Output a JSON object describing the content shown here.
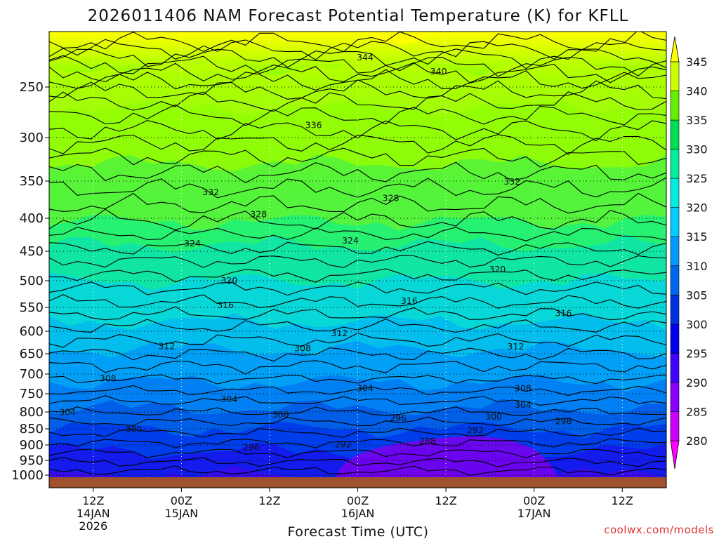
{
  "chart_data": {
    "type": "heatmap",
    "title": "2026011406 NAM Forecast Potential Temperature (K) for KFLL",
    "xlabel": "Forecast Time (UTC)",
    "ylabel": "",
    "credit": "coolwx.com/models",
    "y_ticks": [
      "250",
      "300",
      "350",
      "400",
      "450",
      "500",
      "550",
      "600",
      "650",
      "700",
      "750",
      "800",
      "850",
      "900",
      "950",
      "1000"
    ],
    "y_values": [
      250,
      300,
      350,
      400,
      450,
      500,
      550,
      600,
      650,
      700,
      750,
      800,
      850,
      900,
      950,
      1000
    ],
    "x_ticks": [
      {
        "time": "12Z",
        "date": "14JAN",
        "year": "2026",
        "hour": 6
      },
      {
        "time": "00Z",
        "date": "15JAN",
        "year": "",
        "hour": 18
      },
      {
        "time": "12Z",
        "date": "",
        "year": "",
        "hour": 30
      },
      {
        "time": "00Z",
        "date": "16JAN",
        "year": "",
        "hour": 42
      },
      {
        "time": "12Z",
        "date": "",
        "year": "",
        "hour": 54
      },
      {
        "time": "00Z",
        "date": "17JAN",
        "year": "",
        "hour": 66
      },
      {
        "time": "12Z",
        "date": "",
        "year": "",
        "hour": 78
      }
    ],
    "x_range_hours": [
      0,
      84
    ],
    "y_range_hPa": [
      200,
      1000
    ],
    "colorbar": {
      "levels": [
        280,
        285,
        290,
        295,
        300,
        305,
        310,
        315,
        320,
        325,
        330,
        335,
        340,
        345
      ],
      "labels": [
        "280",
        "285",
        "290",
        "295",
        "300",
        "305",
        "310",
        "315",
        "320",
        "325",
        "330",
        "335",
        "340",
        "345"
      ],
      "colors": [
        "#ff00ff",
        "#cc00ff",
        "#8800ff",
        "#4400ff",
        "#0000ee",
        "#0033dd",
        "#0066ee",
        "#0099ff",
        "#00ccff",
        "#00eedd",
        "#00ee99",
        "#00dd55",
        "#66ee00",
        "#ccff00",
        "#ffff00"
      ]
    },
    "contour_interval": 4,
    "contour_labels": [
      {
        "text": "344",
        "h": 43.0,
        "p": 220
      },
      {
        "text": "340",
        "h": 53.0,
        "p": 234
      },
      {
        "text": "336",
        "h": 36.0,
        "p": 287
      },
      {
        "text": "332",
        "h": 22.0,
        "p": 364
      },
      {
        "text": "332",
        "h": 63.0,
        "p": 350
      },
      {
        "text": "328",
        "h": 28.5,
        "p": 394
      },
      {
        "text": "328",
        "h": 46.5,
        "p": 372
      },
      {
        "text": "324",
        "h": 19.5,
        "p": 437
      },
      {
        "text": "324",
        "h": 41.0,
        "p": 433
      },
      {
        "text": "320",
        "h": 24.5,
        "p": 499
      },
      {
        "text": "320",
        "h": 61.0,
        "p": 480
      },
      {
        "text": "316",
        "h": 24.0,
        "p": 545
      },
      {
        "text": "316",
        "h": 49.0,
        "p": 537
      },
      {
        "text": "316",
        "h": 70.0,
        "p": 561
      },
      {
        "text": "312",
        "h": 16.0,
        "p": 632
      },
      {
        "text": "312",
        "h": 39.5,
        "p": 603
      },
      {
        "text": "312",
        "h": 63.5,
        "p": 633
      },
      {
        "text": "308",
        "h": 8.0,
        "p": 710
      },
      {
        "text": "308",
        "h": 34.5,
        "p": 637
      },
      {
        "text": "308",
        "h": 64.5,
        "p": 735
      },
      {
        "text": "304",
        "h": 2.5,
        "p": 799
      },
      {
        "text": "304",
        "h": 24.5,
        "p": 763
      },
      {
        "text": "304",
        "h": 43.0,
        "p": 735
      },
      {
        "text": "304",
        "h": 64.5,
        "p": 779
      },
      {
        "text": "300",
        "h": 11.5,
        "p": 850
      },
      {
        "text": "300",
        "h": 31.5,
        "p": 806
      },
      {
        "text": "300",
        "h": 60.5,
        "p": 812
      },
      {
        "text": "296",
        "h": 27.5,
        "p": 906
      },
      {
        "text": "296",
        "h": 47.5,
        "p": 817
      },
      {
        "text": "296",
        "h": 70.0,
        "p": 826
      },
      {
        "text": "292",
        "h": 40.0,
        "p": 897
      },
      {
        "text": "292",
        "h": 58.0,
        "p": 853
      },
      {
        "text": "288",
        "h": 51.5,
        "p": 886
      }
    ]
  }
}
